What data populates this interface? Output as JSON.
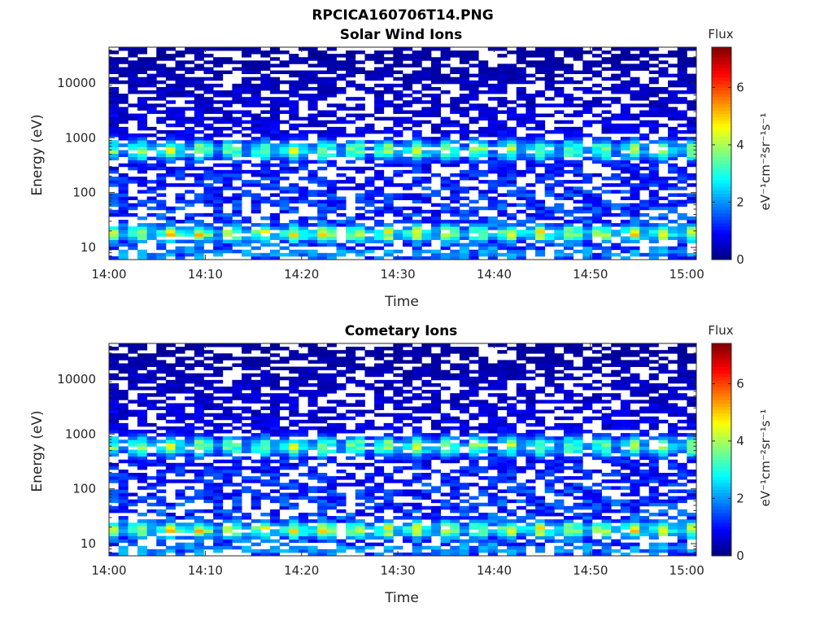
{
  "figure_title": "RPCICA160706T14.PNG",
  "chart_data": [
    {
      "type": "heatmap",
      "title": "Solar Wind Ions",
      "xlabel": "Time",
      "ylabel": "Energy (eV)",
      "x_ticks": [
        "14:00",
        "14:10",
        "14:20",
        "14:30",
        "14:40",
        "14:50",
        "15:00"
      ],
      "xlim": [
        "14:00",
        "15:01"
      ],
      "y_scale": "log",
      "y_ticks": [
        "10",
        "100",
        "1000",
        "10000"
      ],
      "ylim": [
        6,
        45000
      ],
      "colorbar": {
        "title": "Flux",
        "label": "eV⁻¹cm⁻²sr⁻¹s⁻¹",
        "range": [
          0,
          7.4
        ],
        "ticks": [
          "0",
          "2",
          "4",
          "6"
        ],
        "colormap": "jet"
      },
      "grid": false,
      "pattern": {
        "time_bins": 62,
        "energy_bins": 64,
        "blank_fraction": 0.38,
        "bands": [
          {
            "energy_eV": 600,
            "peak_flux": 4.1,
            "width_decades": 0.22,
            "period_min": 3.2
          },
          {
            "energy_eV": 18,
            "peak_flux": 4.8,
            "width_decades": 0.18,
            "period_min": 3.2
          },
          {
            "energy_eV": 8,
            "peak_flux": 2.6,
            "width_decades": 0.08,
            "period_min": 1.6
          }
        ],
        "background_flux_low_energy": 1.6,
        "background_flux_high_energy": 0.2,
        "seed": 7
      }
    },
    {
      "type": "heatmap",
      "title": "Cometary Ions",
      "xlabel": "Time",
      "ylabel": "Energy (eV)",
      "x_ticks": [
        "14:00",
        "14:10",
        "14:20",
        "14:30",
        "14:40",
        "14:50",
        "15:00"
      ],
      "xlim": [
        "14:00",
        "15:01"
      ],
      "y_scale": "log",
      "y_ticks": [
        "10",
        "100",
        "1000",
        "10000"
      ],
      "ylim": [
        6,
        45000
      ],
      "colorbar": {
        "title": "Flux",
        "label": "eV⁻¹cm⁻²sr⁻¹s⁻¹",
        "range": [
          0,
          7.4
        ],
        "ticks": [
          "0",
          "2",
          "4",
          "6"
        ],
        "colormap": "jet"
      },
      "grid": false,
      "pattern": {
        "time_bins": 62,
        "energy_bins": 64,
        "blank_fraction": 0.38,
        "bands": [
          {
            "energy_eV": 600,
            "peak_flux": 4.1,
            "width_decades": 0.22,
            "period_min": 3.2
          },
          {
            "energy_eV": 18,
            "peak_flux": 4.8,
            "width_decades": 0.18,
            "period_min": 3.2
          },
          {
            "energy_eV": 8,
            "peak_flux": 2.6,
            "width_decades": 0.08,
            "period_min": 1.6
          }
        ],
        "background_flux_low_energy": 1.6,
        "background_flux_high_energy": 0.2,
        "seed": 7
      }
    }
  ]
}
